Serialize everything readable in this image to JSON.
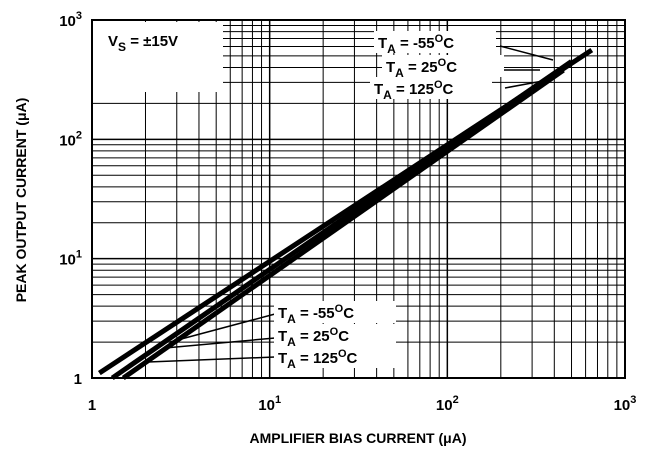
{
  "chart_data": {
    "type": "line",
    "xlabel": "AMPLIFIER BIAS CURRENT (μA)",
    "ylabel": "PEAK OUTPUT CURRENT (μA)",
    "annotation": {
      "main": "V",
      "sub": "S",
      "value": " = ±15V"
    },
    "log_x": true,
    "log_y": true,
    "grid": true,
    "xlim": [
      1,
      1000
    ],
    "ylim": [
      1,
      1000
    ],
    "xticks": [
      1,
      {
        "value": 10,
        "label": "10",
        "exp": "1"
      },
      {
        "value": 100,
        "label": "10",
        "exp": "2"
      },
      {
        "value": 1000,
        "label": "10",
        "exp": "3"
      }
    ],
    "yticks": [
      1,
      {
        "value": 10,
        "label": "10",
        "exp": "1"
      },
      {
        "value": 100,
        "label": "10",
        "exp": "2"
      },
      {
        "value": 1000,
        "label": "10",
        "exp": "3"
      }
    ],
    "series": [
      {
        "name": {
          "main": "T",
          "sub": "A",
          "value": " = -55",
          "sup": "O",
          "unit": "C"
        },
        "color": "#000000",
        "x": [
          1.3,
          500
        ],
        "values": [
          1.0,
          450
        ]
      },
      {
        "name": {
          "main": "T",
          "sub": "A",
          "value": " = 25",
          "sup": "O",
          "unit": "C"
        },
        "color": "#000000",
        "x": [
          1.1,
          650
        ],
        "values": [
          1.1,
          560
        ]
      },
      {
        "name": {
          "main": "T",
          "sub": "A",
          "value": " = 125",
          "sup": "O",
          "unit": "C"
        },
        "color": "#000000",
        "x": [
          1.5,
          450
        ],
        "values": [
          1.0,
          380
        ]
      }
    ]
  }
}
